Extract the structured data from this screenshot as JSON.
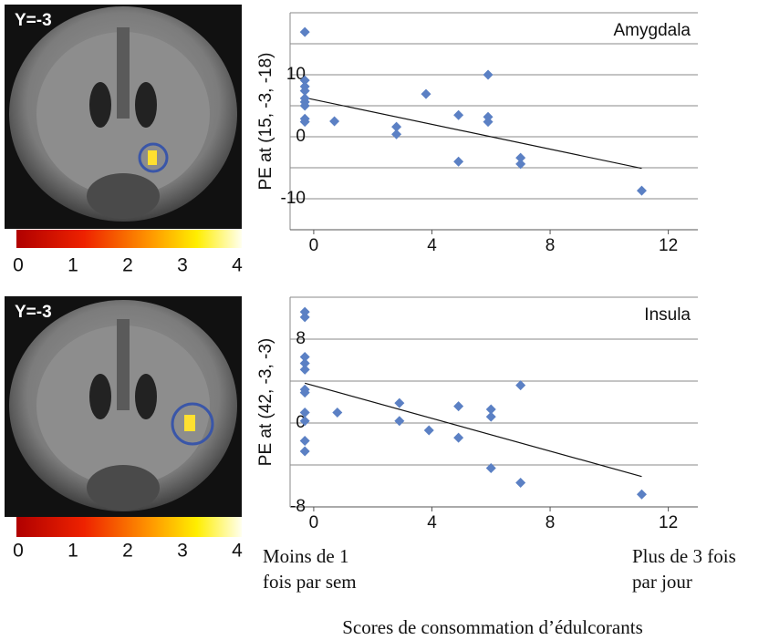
{
  "chart_data": [
    {
      "type": "scatter",
      "title": "Amygdala",
      "y_label": "PE at (15, -3, -18)",
      "color": "#5b80c4",
      "x": [
        -0.3,
        -0.3,
        -0.3,
        -0.3,
        -0.3,
        -0.3,
        -0.3,
        -0.3,
        -0.3,
        0.7,
        2.8,
        2.8,
        3.8,
        4.9,
        4.9,
        5.9,
        5.9,
        5.9,
        7,
        7,
        11.1
      ],
      "y": [
        16.9,
        9.1,
        8.1,
        7.4,
        6.2,
        5.6,
        5,
        2.9,
        2.4,
        2.5,
        1.6,
        0.4,
        6.9,
        3.5,
        -4,
        10,
        3.2,
        2.4,
        -3.4,
        -4.4,
        -8.7
      ],
      "trendline": {
        "x": [
          -0.3,
          11.1
        ],
        "y": [
          6.3,
          -5.1
        ]
      },
      "xlim": [
        -0.8,
        13
      ],
      "ylim": [
        -15,
        20
      ],
      "xticks": [
        0,
        4,
        8,
        12
      ],
      "yticks": [
        -10,
        0,
        10
      ],
      "ygrid": [
        -15,
        -10,
        -5,
        0,
        5,
        10,
        15,
        20
      ]
    },
    {
      "type": "scatter",
      "title": "Insula",
      "y_label": "PE at (42, -3, -3)",
      "color": "#5b80c4",
      "x": [
        -0.3,
        -0.3,
        -0.3,
        -0.3,
        -0.3,
        -0.3,
        -0.3,
        -0.3,
        -0.3,
        -0.3,
        -0.3,
        0.8,
        2.9,
        2.9,
        3.9,
        4.9,
        4.9,
        6,
        6,
        6,
        7,
        7,
        11.1
      ],
      "y": [
        10.6,
        10.1,
        6.3,
        5.7,
        5.1,
        3.2,
        2.9,
        1,
        0.2,
        -1.7,
        -2.7,
        1,
        1.9,
        0.2,
        -0.7,
        1.6,
        -1.4,
        1.3,
        0.6,
        -4.3,
        3.6,
        -5.7,
        -6.8
      ],
      "trendline": {
        "x": [
          -0.3,
          11.1
        ],
        "y": [
          3.8,
          -5.1
        ]
      },
      "xlim": [
        -0.8,
        13
      ],
      "ylim": [
        -8,
        12
      ],
      "xticks": [
        0,
        4,
        8,
        12
      ],
      "yticks": [
        -8,
        0,
        8
      ],
      "ygrid": [
        -8,
        -4,
        0,
        4,
        8,
        12
      ]
    }
  ],
  "brain_panels": [
    {
      "label": "Y=-3",
      "colorbar_ticks": [
        0,
        1,
        2,
        3,
        4
      ]
    },
    {
      "label": "Y=-3",
      "colorbar_ticks": [
        0,
        1,
        2,
        3,
        4
      ]
    }
  ],
  "x_scale_notes": {
    "low": [
      "Moins de 1",
      "fois par sem"
    ],
    "high": [
      "Plus de 3 fois",
      "par jour"
    ]
  },
  "x_caption": "Scores de consommation d’édulcorants"
}
